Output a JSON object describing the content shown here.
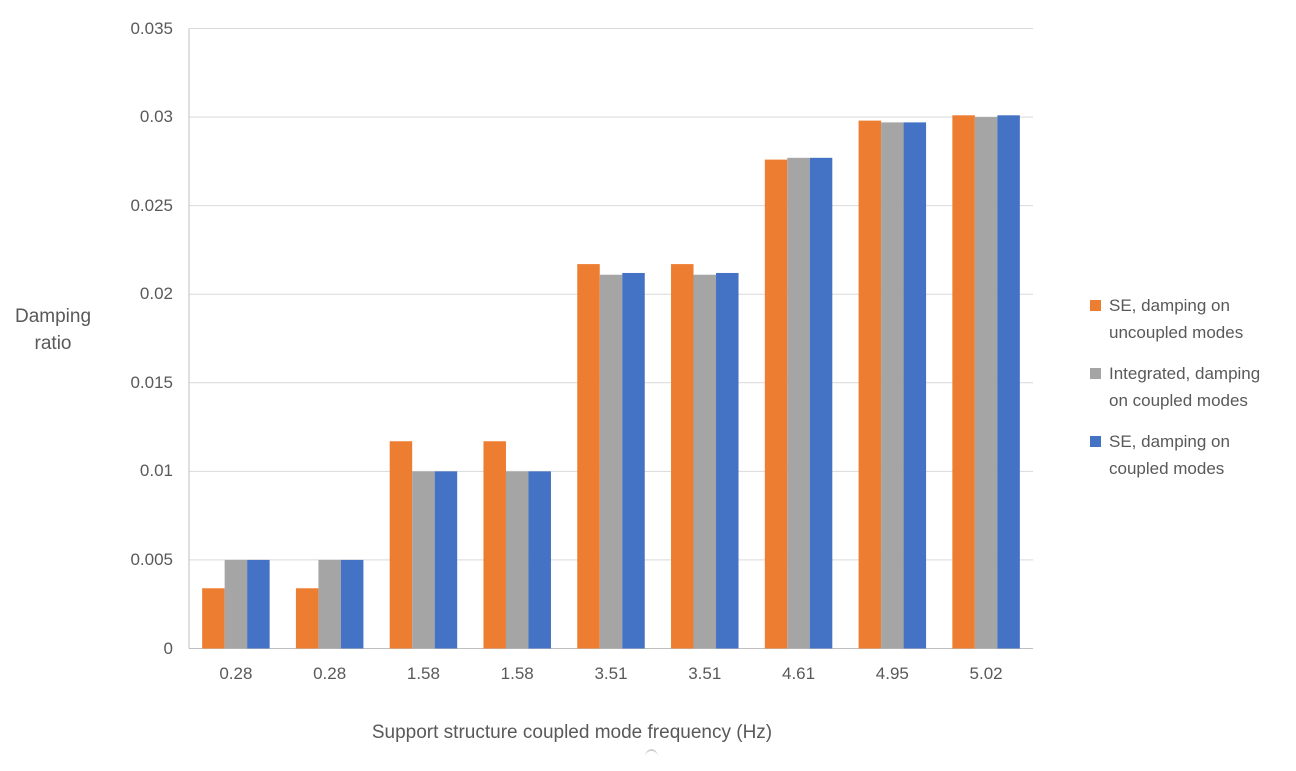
{
  "chart_data": {
    "type": "bar",
    "title": "",
    "xlabel": "Support structure coupled mode frequency (Hz)",
    "ylabel": "Damping ratio",
    "categories": [
      "0.28",
      "0.28",
      "1.58",
      "1.58",
      "3.51",
      "3.51",
      "4.61",
      "4.95",
      "5.02"
    ],
    "series": [
      {
        "name": "SE, damping on uncoupled modes",
        "color": "#ED7D31",
        "values": [
          0.0034,
          0.0034,
          0.0117,
          0.0117,
          0.0217,
          0.0217,
          0.0276,
          0.0298,
          0.0301
        ]
      },
      {
        "name": "Integrated, damping on coupled modes",
        "color": "#A5A5A5",
        "values": [
          0.005,
          0.005,
          0.01,
          0.01,
          0.0211,
          0.0211,
          0.0277,
          0.0297,
          0.03
        ]
      },
      {
        "name": "SE, damping on coupled modes",
        "color": "#4472C4",
        "values": [
          0.005,
          0.005,
          0.01,
          0.01,
          0.0212,
          0.0212,
          0.0277,
          0.0297,
          0.0301
        ]
      }
    ],
    "ylim": [
      0,
      0.035
    ],
    "y_ticks": [
      "0",
      "0.005",
      "0.01",
      "0.015",
      "0.02",
      "0.025",
      "0.03",
      "0.035"
    ],
    "grid": true,
    "legend_position": "right"
  },
  "colors": {
    "text": "#595959",
    "gridline": "#D9D9D9",
    "axis_line": "#BFBFBF",
    "background": "#FFFFFF"
  }
}
